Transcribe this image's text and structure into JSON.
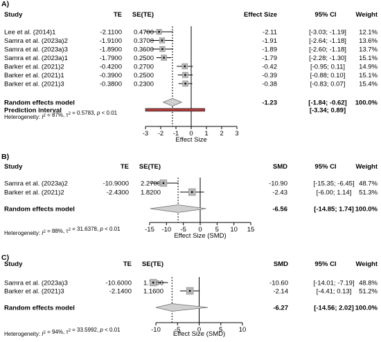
{
  "chart_data": [
    {
      "type": "forest",
      "panel": "A)",
      "headers": {
        "study": "Study",
        "te": "TE",
        "sete": "SE(TE)",
        "effect": "Effect Size",
        "ci": "95% CI",
        "weight": "Weight"
      },
      "studies": [
        {
          "name": "Lee et al. (2014)1",
          "te": "-2.1100",
          "se": "0.4700",
          "es_text": "-2.11",
          "ci_text": "[-3.03; -1.19]",
          "weight_text": "12.1%",
          "es": -2.11,
          "lo": -3.03,
          "hi": -1.19,
          "weight": 12.1
        },
        {
          "name": "Samra et al. (2023a)2",
          "te": "-1.9100",
          "se": "0.3700",
          "es_text": "-1.91",
          "ci_text": "[-2.64; -1.18]",
          "weight_text": "13.6%",
          "es": -1.91,
          "lo": -2.64,
          "hi": -1.18,
          "weight": 13.6
        },
        {
          "name": "Samra et al. (2023a)3",
          "te": "-1.8900",
          "se": "0.3600",
          "es_text": "-1.89",
          "ci_text": "[-2.60; -1.18]",
          "weight_text": "13.7%",
          "es": -1.89,
          "lo": -2.6,
          "hi": -1.18,
          "weight": 13.7
        },
        {
          "name": "Samra et al. (2023a)1",
          "te": "-1.7900",
          "se": "0.2500",
          "es_text": "-1.79",
          "ci_text": "[-2.28; -1.30]",
          "weight_text": "15.1%",
          "es": -1.79,
          "lo": -2.28,
          "hi": -1.3,
          "weight": 15.1
        },
        {
          "name": "Barker et al. (2021)2",
          "te": "-0.4200",
          "se": "0.2700",
          "es_text": "-0.42",
          "ci_text": "[-0.95; 0.11]",
          "weight_text": "14.9%",
          "es": -0.42,
          "lo": -0.95,
          "hi": 0.11,
          "weight": 14.9
        },
        {
          "name": "Barker et al. (2021)1",
          "te": "-0.3900",
          "se": "0.2500",
          "es_text": "-0.39",
          "ci_text": "[-0.88; 0.10]",
          "weight_text": "15.1%",
          "es": -0.39,
          "lo": -0.88,
          "hi": 0.1,
          "weight": 15.1
        },
        {
          "name": "Barker et al. (2021)3",
          "te": "-0.3800",
          "se": "0.2300",
          "es_text": "-0.38",
          "ci_text": "[-0.83; 0.07]",
          "weight_text": "15.4%",
          "es": -0.38,
          "lo": -0.83,
          "hi": 0.07,
          "weight": 15.4
        }
      ],
      "summary": {
        "label": "Random effects model",
        "es_text": "-1.23",
        "ci_text": "[-1.84; -0.62]",
        "weight_text": "100.0%",
        "es": -1.23,
        "lo": -1.84,
        "hi": -0.62
      },
      "prediction": {
        "label": "Prediction interval",
        "ci_text": "[-3.34; 0.89]",
        "lo": -3.34,
        "hi": 0.89
      },
      "heterogeneity": {
        "prefix": "Heterogeneity: ",
        "i2": "87%",
        "tau2": "0.5783",
        "p": "p < 0.01"
      },
      "xaxis": {
        "label": "Effect Size",
        "ticks": [
          -3,
          -2,
          -1,
          0,
          1,
          2,
          3
        ],
        "tick_labels": [
          "-3",
          "-2",
          "-1",
          "0",
          "1",
          "2",
          "3"
        ],
        "xlim": [
          -3,
          3
        ]
      }
    },
    {
      "type": "forest",
      "panel": "B)",
      "headers": {
        "study": "Study",
        "te": "TE",
        "sete": "SE(TE)",
        "effect": "SMD",
        "ci": "95% CI",
        "weight": "Weight"
      },
      "studies": [
        {
          "name": "Samra et al. (2023a)2",
          "te": "-10.9000",
          "se": "2.2700",
          "es_text": "-10.90",
          "ci_text": "[-15.35; -6.45]",
          "weight_text": "48.7%",
          "es": -10.9,
          "lo": -15.35,
          "hi": -6.45,
          "weight": 48.7
        },
        {
          "name": "Barker et al. (2021)2",
          "te": "-2.4300",
          "se": "1.8200",
          "es_text": "-2.43",
          "ci_text": "[-6.00; 1.14]",
          "weight_text": "51.3%",
          "es": -2.43,
          "lo": -6.0,
          "hi": 1.14,
          "weight": 51.3
        }
      ],
      "summary": {
        "label": "Random effects model",
        "es_text": "-6.56",
        "ci_text": "[-14.85; 1.74]",
        "weight_text": "100.0%",
        "es": -6.56,
        "lo": -14.85,
        "hi": 1.74
      },
      "heterogeneity": {
        "prefix": "Heterogeneity: ",
        "i2": "88%",
        "tau2": "31.6378",
        "p": "p < 0.01"
      },
      "xaxis": {
        "label": "Effect Size (SMD)",
        "ticks": [
          -15,
          -10,
          -5,
          0,
          5,
          10,
          15
        ],
        "tick_labels": [
          "-15",
          "-10",
          "-5",
          "0",
          "5",
          "10",
          "15"
        ],
        "xlim": [
          -15,
          15
        ]
      }
    },
    {
      "type": "forest",
      "panel": "C)",
      "headers": {
        "study": "Study",
        "te": "TE",
        "sete": "SE(TE)",
        "effect": "SMD",
        "ci": "95% CI",
        "weight": "Weight"
      },
      "studies": [
        {
          "name": "Samra et al. (2023a)3",
          "te": "-10.6000",
          "se": "1.7400",
          "es_text": "-10.60",
          "ci_text": "[-14.01; -7.19]",
          "weight_text": "48.8%",
          "es": -10.6,
          "lo": -14.01,
          "hi": -7.19,
          "weight": 48.8
        },
        {
          "name": "Barker et al. (2021)3",
          "te": "-2.1400",
          "se": "1.1600",
          "es_text": "-2.14",
          "ci_text": "[-4.41; 0.13]",
          "weight_text": "51.2%",
          "es": -2.14,
          "lo": -4.41,
          "hi": 0.13,
          "weight": 51.2
        }
      ],
      "summary": {
        "label": "Random effects model",
        "es_text": "-6.27",
        "ci_text": "[-14.56; 2.02]",
        "weight_text": "100.0%",
        "es": -6.27,
        "lo": -14.56,
        "hi": 2.02
      },
      "heterogeneity": {
        "prefix": "Heterogeneity: ",
        "i2": "94%",
        "tau2": "33.5992",
        "p": "p < 0.01"
      },
      "xaxis": {
        "label": "Effect Size (SMD)",
        "ticks": [
          -10,
          -5,
          0,
          5,
          10
        ],
        "tick_labels": [
          "-10",
          "-5",
          "0",
          "5",
          "10"
        ],
        "xlim": [
          -10,
          10
        ]
      }
    }
  ]
}
